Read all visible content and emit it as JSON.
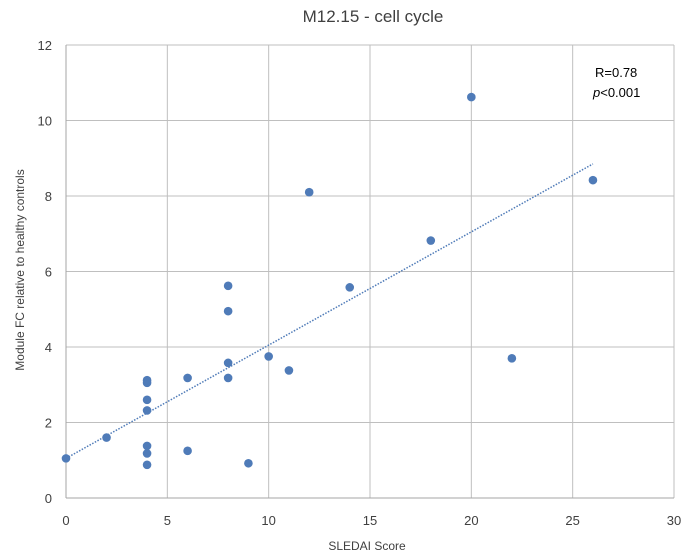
{
  "colors": {
    "marker": "#4f7bb8",
    "trendline": "#4f7bb8",
    "grid": "#bfbfbf",
    "axis": "#a6a6a6",
    "text": "#404040"
  },
  "chart_data": {
    "type": "scatter",
    "title": "M12.15 - cell cycle",
    "xlabel": "SLEDAI Score",
    "ylabel": "Module FC relative to healthy controls",
    "xlim": [
      0,
      30
    ],
    "ylim": [
      0,
      12
    ],
    "xticks": [
      0,
      5,
      10,
      15,
      20,
      25,
      30
    ],
    "yticks": [
      0,
      2,
      4,
      6,
      8,
      10,
      12
    ],
    "grid": true,
    "legend": "none",
    "points": [
      {
        "x": 0,
        "y": 1.05
      },
      {
        "x": 2,
        "y": 1.6
      },
      {
        "x": 4,
        "y": 0.88
      },
      {
        "x": 4,
        "y": 1.18
      },
      {
        "x": 4,
        "y": 1.38
      },
      {
        "x": 4,
        "y": 2.32
      },
      {
        "x": 4,
        "y": 2.6
      },
      {
        "x": 4,
        "y": 3.05
      },
      {
        "x": 4,
        "y": 3.12
      },
      {
        "x": 6,
        "y": 1.25
      },
      {
        "x": 6,
        "y": 3.18
      },
      {
        "x": 8,
        "y": 3.18
      },
      {
        "x": 8,
        "y": 3.58
      },
      {
        "x": 8,
        "y": 4.95
      },
      {
        "x": 8,
        "y": 5.62
      },
      {
        "x": 9,
        "y": 0.92
      },
      {
        "x": 10,
        "y": 3.75
      },
      {
        "x": 11,
        "y": 3.38
      },
      {
        "x": 12,
        "y": 8.1
      },
      {
        "x": 14,
        "y": 5.58
      },
      {
        "x": 18,
        "y": 6.82
      },
      {
        "x": 20,
        "y": 10.62
      },
      {
        "x": 22,
        "y": 3.7
      },
      {
        "x": 26,
        "y": 8.42
      }
    ],
    "trendline": {
      "type": "linear",
      "from": {
        "x": 0,
        "y": 1.05
      },
      "to": {
        "x": 26,
        "y": 8.85
      }
    },
    "annotations": {
      "r_text": "R=0.78",
      "p_prefix": "p",
      "p_suffix": "<0.001"
    }
  }
}
